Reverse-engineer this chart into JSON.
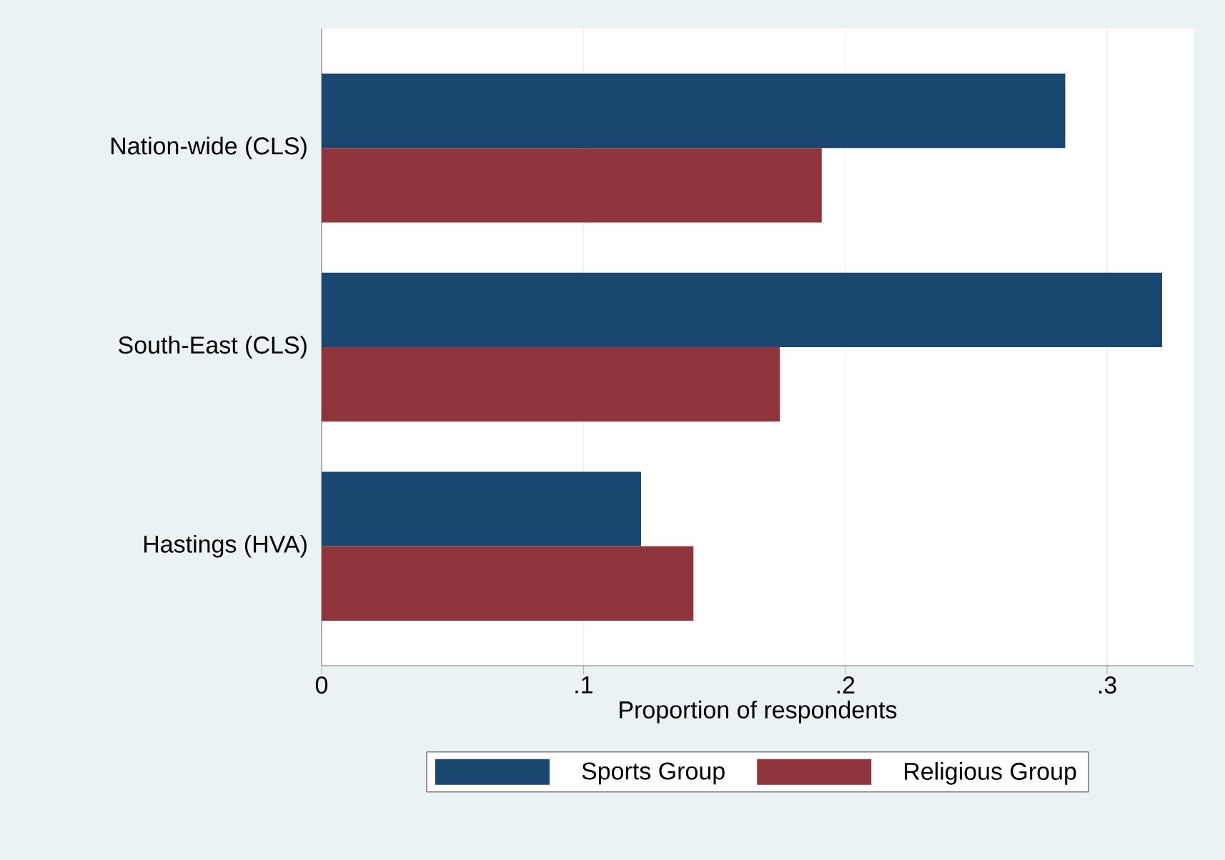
{
  "chart_data": {
    "type": "bar",
    "orientation": "horizontal",
    "xlabel": "Proportion of respondents",
    "categories": [
      "Nation-wide (CLS)",
      "South-East (CLS)",
      "Hastings (HVA)"
    ],
    "series": [
      {
        "name": "Sports Group",
        "color": "#1a476f",
        "values": [
          0.284,
          0.321,
          0.122
        ]
      },
      {
        "name": "Religious Group",
        "color": "#90353b",
        "values": [
          0.191,
          0.175,
          0.142
        ]
      }
    ],
    "xlim": [
      0,
      0.333
    ],
    "xticks": [
      0,
      {
        "value": 0.1,
        "label": ".1"
      },
      {
        "value": 0.2,
        "label": ".2"
      },
      {
        "value": 0.3,
        "label": ".3"
      }
    ],
    "grid": "x",
    "legend": "bottom"
  }
}
